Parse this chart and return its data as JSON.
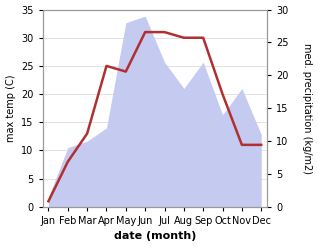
{
  "months": [
    "Jan",
    "Feb",
    "Mar",
    "Apr",
    "May",
    "Jun",
    "Jul",
    "Aug",
    "Sep",
    "Oct",
    "Nov",
    "Dec"
  ],
  "temp": [
    1,
    8,
    13,
    25,
    24,
    31,
    31,
    30,
    30,
    20,
    11,
    11
  ],
  "precip": [
    1.5,
    9,
    10,
    12,
    28,
    29,
    22,
    18,
    22,
    14,
    18,
    11
  ],
  "temp_color": "#b03030",
  "precip_fill_color": "#c5caf0",
  "temp_ylim": [
    0,
    35
  ],
  "precip_ylim": [
    0,
    30
  ],
  "temp_yticks": [
    0,
    5,
    10,
    15,
    20,
    25,
    30,
    35
  ],
  "precip_yticks": [
    0,
    5,
    10,
    15,
    20,
    25,
    30
  ],
  "ylabel_left": "max temp (C)",
  "ylabel_right": "med. precipitation (kg/m2)",
  "xlabel": "date (month)",
  "background_color": "#ffffff",
  "line_width": 1.8,
  "figsize": [
    3.18,
    2.47
  ],
  "dpi": 100
}
